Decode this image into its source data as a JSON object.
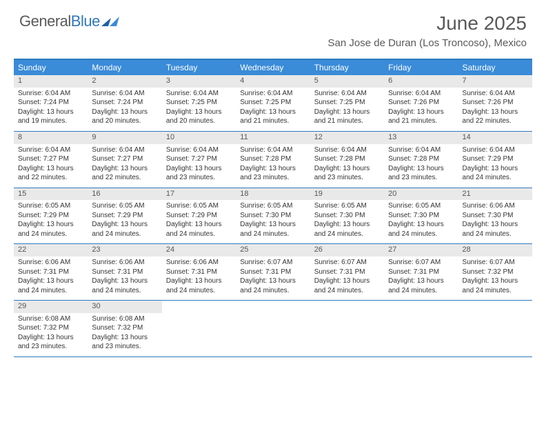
{
  "logo": {
    "text_gray": "General",
    "text_blue": "Blue"
  },
  "header": {
    "month_title": "June 2025",
    "location": "San Jose de Duran (Los Troncoso), Mexico"
  },
  "colors": {
    "header_bg": "#3a8bd8",
    "border": "#2f78bd",
    "daynum_bg": "#e9e9e9",
    "text_gray": "#58595b"
  },
  "day_labels": [
    "Sunday",
    "Monday",
    "Tuesday",
    "Wednesday",
    "Thursday",
    "Friday",
    "Saturday"
  ],
  "weeks": [
    [
      {
        "n": "1",
        "sr": "Sunrise: 6:04 AM",
        "ss": "Sunset: 7:24 PM",
        "d1": "Daylight: 13 hours",
        "d2": "and 19 minutes."
      },
      {
        "n": "2",
        "sr": "Sunrise: 6:04 AM",
        "ss": "Sunset: 7:24 PM",
        "d1": "Daylight: 13 hours",
        "d2": "and 20 minutes."
      },
      {
        "n": "3",
        "sr": "Sunrise: 6:04 AM",
        "ss": "Sunset: 7:25 PM",
        "d1": "Daylight: 13 hours",
        "d2": "and 20 minutes."
      },
      {
        "n": "4",
        "sr": "Sunrise: 6:04 AM",
        "ss": "Sunset: 7:25 PM",
        "d1": "Daylight: 13 hours",
        "d2": "and 21 minutes."
      },
      {
        "n": "5",
        "sr": "Sunrise: 6:04 AM",
        "ss": "Sunset: 7:25 PM",
        "d1": "Daylight: 13 hours",
        "d2": "and 21 minutes."
      },
      {
        "n": "6",
        "sr": "Sunrise: 6:04 AM",
        "ss": "Sunset: 7:26 PM",
        "d1": "Daylight: 13 hours",
        "d2": "and 21 minutes."
      },
      {
        "n": "7",
        "sr": "Sunrise: 6:04 AM",
        "ss": "Sunset: 7:26 PM",
        "d1": "Daylight: 13 hours",
        "d2": "and 22 minutes."
      }
    ],
    [
      {
        "n": "8",
        "sr": "Sunrise: 6:04 AM",
        "ss": "Sunset: 7:27 PM",
        "d1": "Daylight: 13 hours",
        "d2": "and 22 minutes."
      },
      {
        "n": "9",
        "sr": "Sunrise: 6:04 AM",
        "ss": "Sunset: 7:27 PM",
        "d1": "Daylight: 13 hours",
        "d2": "and 22 minutes."
      },
      {
        "n": "10",
        "sr": "Sunrise: 6:04 AM",
        "ss": "Sunset: 7:27 PM",
        "d1": "Daylight: 13 hours",
        "d2": "and 23 minutes."
      },
      {
        "n": "11",
        "sr": "Sunrise: 6:04 AM",
        "ss": "Sunset: 7:28 PM",
        "d1": "Daylight: 13 hours",
        "d2": "and 23 minutes."
      },
      {
        "n": "12",
        "sr": "Sunrise: 6:04 AM",
        "ss": "Sunset: 7:28 PM",
        "d1": "Daylight: 13 hours",
        "d2": "and 23 minutes."
      },
      {
        "n": "13",
        "sr": "Sunrise: 6:04 AM",
        "ss": "Sunset: 7:28 PM",
        "d1": "Daylight: 13 hours",
        "d2": "and 23 minutes."
      },
      {
        "n": "14",
        "sr": "Sunrise: 6:04 AM",
        "ss": "Sunset: 7:29 PM",
        "d1": "Daylight: 13 hours",
        "d2": "and 24 minutes."
      }
    ],
    [
      {
        "n": "15",
        "sr": "Sunrise: 6:05 AM",
        "ss": "Sunset: 7:29 PM",
        "d1": "Daylight: 13 hours",
        "d2": "and 24 minutes."
      },
      {
        "n": "16",
        "sr": "Sunrise: 6:05 AM",
        "ss": "Sunset: 7:29 PM",
        "d1": "Daylight: 13 hours",
        "d2": "and 24 minutes."
      },
      {
        "n": "17",
        "sr": "Sunrise: 6:05 AM",
        "ss": "Sunset: 7:29 PM",
        "d1": "Daylight: 13 hours",
        "d2": "and 24 minutes."
      },
      {
        "n": "18",
        "sr": "Sunrise: 6:05 AM",
        "ss": "Sunset: 7:30 PM",
        "d1": "Daylight: 13 hours",
        "d2": "and 24 minutes."
      },
      {
        "n": "19",
        "sr": "Sunrise: 6:05 AM",
        "ss": "Sunset: 7:30 PM",
        "d1": "Daylight: 13 hours",
        "d2": "and 24 minutes."
      },
      {
        "n": "20",
        "sr": "Sunrise: 6:05 AM",
        "ss": "Sunset: 7:30 PM",
        "d1": "Daylight: 13 hours",
        "d2": "and 24 minutes."
      },
      {
        "n": "21",
        "sr": "Sunrise: 6:06 AM",
        "ss": "Sunset: 7:30 PM",
        "d1": "Daylight: 13 hours",
        "d2": "and 24 minutes."
      }
    ],
    [
      {
        "n": "22",
        "sr": "Sunrise: 6:06 AM",
        "ss": "Sunset: 7:31 PM",
        "d1": "Daylight: 13 hours",
        "d2": "and 24 minutes."
      },
      {
        "n": "23",
        "sr": "Sunrise: 6:06 AM",
        "ss": "Sunset: 7:31 PM",
        "d1": "Daylight: 13 hours",
        "d2": "and 24 minutes."
      },
      {
        "n": "24",
        "sr": "Sunrise: 6:06 AM",
        "ss": "Sunset: 7:31 PM",
        "d1": "Daylight: 13 hours",
        "d2": "and 24 minutes."
      },
      {
        "n": "25",
        "sr": "Sunrise: 6:07 AM",
        "ss": "Sunset: 7:31 PM",
        "d1": "Daylight: 13 hours",
        "d2": "and 24 minutes."
      },
      {
        "n": "26",
        "sr": "Sunrise: 6:07 AM",
        "ss": "Sunset: 7:31 PM",
        "d1": "Daylight: 13 hours",
        "d2": "and 24 minutes."
      },
      {
        "n": "27",
        "sr": "Sunrise: 6:07 AM",
        "ss": "Sunset: 7:31 PM",
        "d1": "Daylight: 13 hours",
        "d2": "and 24 minutes."
      },
      {
        "n": "28",
        "sr": "Sunrise: 6:07 AM",
        "ss": "Sunset: 7:32 PM",
        "d1": "Daylight: 13 hours",
        "d2": "and 24 minutes."
      }
    ],
    [
      {
        "n": "29",
        "sr": "Sunrise: 6:08 AM",
        "ss": "Sunset: 7:32 PM",
        "d1": "Daylight: 13 hours",
        "d2": "and 23 minutes."
      },
      {
        "n": "30",
        "sr": "Sunrise: 6:08 AM",
        "ss": "Sunset: 7:32 PM",
        "d1": "Daylight: 13 hours",
        "d2": "and 23 minutes."
      },
      null,
      null,
      null,
      null,
      null
    ]
  ]
}
